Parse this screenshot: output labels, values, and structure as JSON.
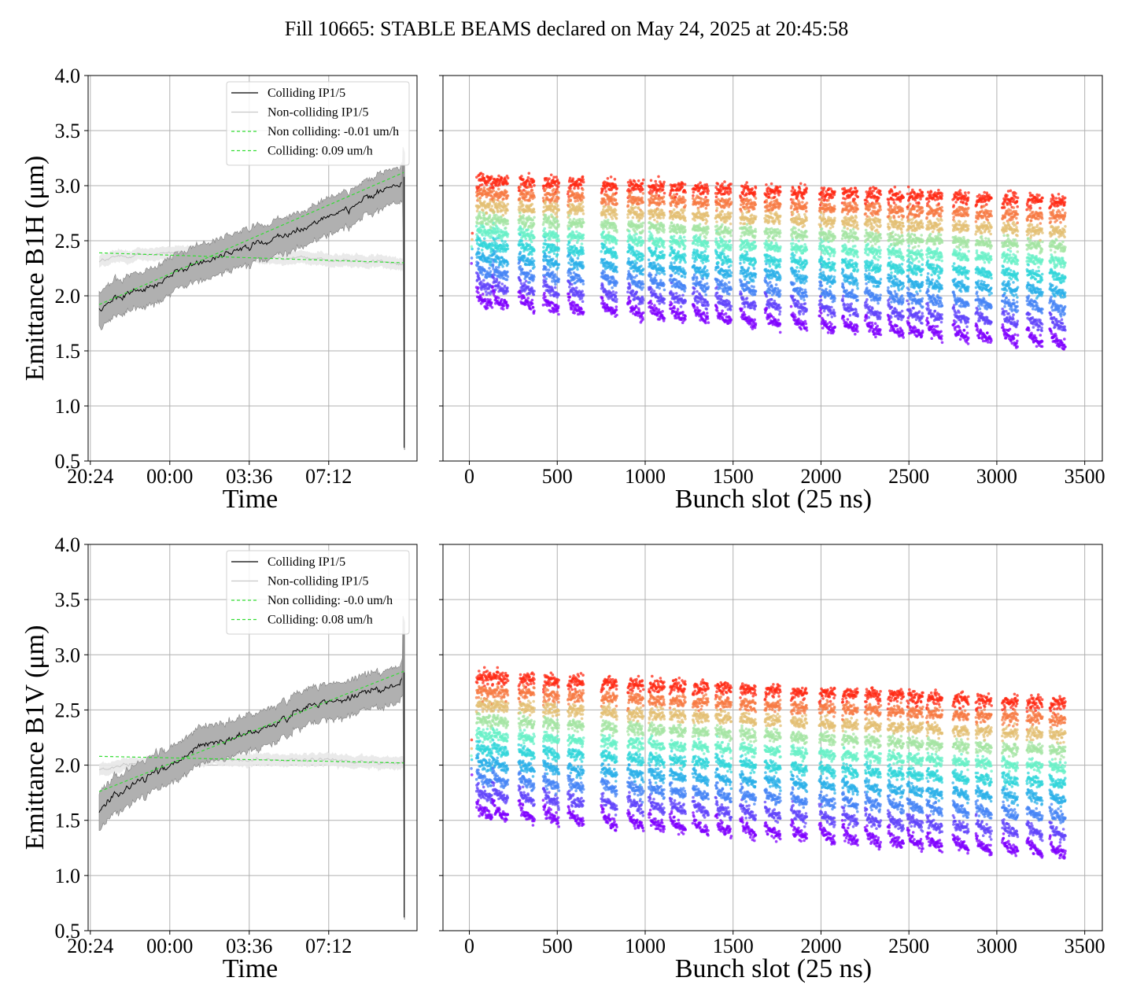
{
  "figure": {
    "title": "Fill 10665: STABLE BEAMS declared on May 24, 2025 at 20:45:58"
  },
  "chart_data": [
    {
      "type": "line",
      "panel": "top-left",
      "ylabel": "Emittance B1H (μm)",
      "xlabel": "Time",
      "x_unit": "hours since 20:24",
      "xlim_hours": [
        -0.1,
        14.8
      ],
      "x_ticks": [
        {
          "h": 0,
          "label": "20:24"
        },
        {
          "h": 3.6,
          "label": "00:00"
        },
        {
          "h": 7.2,
          "label": "03:36"
        },
        {
          "h": 10.8,
          "label": "07:12"
        }
      ],
      "ylim": [
        0.5,
        4.0
      ],
      "y_ticks": [
        "0.5",
        "1.0",
        "1.5",
        "2.0",
        "2.5",
        "3.0",
        "3.5",
        "4.0"
      ],
      "grid": true,
      "legend_position": "top-right",
      "legend": [
        "Colliding IP1/5",
        "Non-colliding IP1/5",
        "Non colliding: -0.01 um/h",
        "Colliding: 0.09 um/h"
      ],
      "series": [
        {
          "name": "Colliding IP1/5",
          "color": "#000000",
          "band_color": "#b0b0b0",
          "x": [
            0.4,
            1.0,
            2.0,
            3.0,
            4.0,
            5.0,
            6.0,
            7.0,
            8.0,
            9.0,
            10.0,
            11.0,
            12.0,
            13.0,
            13.5,
            14.0,
            14.2
          ],
          "y": [
            1.9,
            1.95,
            2.03,
            2.12,
            2.22,
            2.3,
            2.38,
            2.45,
            2.49,
            2.57,
            2.65,
            2.72,
            2.83,
            2.92,
            2.98,
            3.02,
            3.08
          ],
          "band_halfwidth": 0.15
        },
        {
          "name": "Non-colliding IP1/5",
          "color": "#c8c8c8",
          "band_color": "#e8e8e8",
          "x": [
            0.4,
            2.0,
            4.0,
            6.0,
            8.0,
            10.0,
            12.0,
            14.2
          ],
          "y": [
            2.32,
            2.37,
            2.39,
            2.38,
            2.35,
            2.33,
            2.31,
            2.3
          ],
          "band_halfwidth": 0.05
        },
        {
          "name": "Non colliding: -0.01 um/h",
          "style": "dashed",
          "color": "#33dd33",
          "x": [
            0.4,
            14.2
          ],
          "y": [
            2.39,
            2.3
          ]
        },
        {
          "name": "Colliding: 0.09 um/h",
          "style": "dashed",
          "color": "#33dd33",
          "x": [
            0.4,
            14.2
          ],
          "y": [
            1.92,
            3.12
          ]
        }
      ]
    },
    {
      "type": "scatter",
      "panel": "top-right",
      "xlabel": "Bunch slot (25 ns)",
      "xlim": [
        -150,
        3600
      ],
      "x_ticks": [
        "0",
        "500",
        "1000",
        "1500",
        "2000",
        "2500",
        "3000",
        "3500"
      ],
      "ylim": [
        0.5,
        4.0
      ],
      "grid": true,
      "colormap": "rainbow (time: violet = start, red = end)",
      "colormap_stops": [
        "#7f00ff",
        "#4a7bf7",
        "#1ccbe1",
        "#7efac0",
        "#f0b869",
        "#ff2a14"
      ],
      "trains_start": [
        40,
        130,
        280,
        420,
        560,
        750,
        900,
        1020,
        1140,
        1270,
        1400,
        1540,
        1680,
        1830,
        1990,
        2120,
        2250,
        2380,
        2490,
        2600,
        2750,
        2880,
        3030,
        3170,
        3300
      ],
      "train_length": 90,
      "bottom_envelope": {
        "x": [
          50,
          3420
        ],
        "y": [
          2.0,
          1.62
        ]
      },
      "top_envelope": {
        "x": [
          50,
          3420
        ],
        "y": [
          3.05,
          2.85
        ]
      }
    },
    {
      "type": "line",
      "panel": "bottom-left",
      "ylabel": "Emittance B1V (μm)",
      "xlabel": "Time",
      "x_unit": "hours since 20:24",
      "xlim_hours": [
        -0.1,
        14.8
      ],
      "x_ticks": [
        {
          "h": 0,
          "label": "20:24"
        },
        {
          "h": 3.6,
          "label": "00:00"
        },
        {
          "h": 7.2,
          "label": "03:36"
        },
        {
          "h": 10.8,
          "label": "07:12"
        }
      ],
      "ylim": [
        0.5,
        4.0
      ],
      "y_ticks": [
        "0.5",
        "1.0",
        "1.5",
        "2.0",
        "2.5",
        "3.0",
        "3.5",
        "4.0"
      ],
      "grid": true,
      "legend_position": "top-right",
      "legend": [
        "Colliding IP1/5",
        "Non-colliding IP1/5",
        "Non colliding: -0.0 um/h",
        "Colliding: 0.08 um/h"
      ],
      "series": [
        {
          "name": "Colliding IP1/5",
          "color": "#000000",
          "band_color": "#b0b0b0",
          "x": [
            0.4,
            1.0,
            2.0,
            3.0,
            4.0,
            5.0,
            6.0,
            7.0,
            8.0,
            9.0,
            10.0,
            11.0,
            12.0,
            13.0,
            13.5,
            14.0,
            14.2
          ],
          "y": [
            1.56,
            1.72,
            1.85,
            1.95,
            2.05,
            2.15,
            2.22,
            2.28,
            2.35,
            2.45,
            2.55,
            2.58,
            2.63,
            2.68,
            2.7,
            2.76,
            2.84
          ],
          "band_halfwidth": 0.15
        },
        {
          "name": "Non-colliding IP1/5",
          "color": "#c8c8c8",
          "band_color": "#e8e8e8",
          "x": [
            0.4,
            2.0,
            4.0,
            6.0,
            8.0,
            10.0,
            12.0,
            14.2
          ],
          "y": [
            1.95,
            2.02,
            2.06,
            2.06,
            2.05,
            2.04,
            2.03,
            2.02
          ],
          "band_halfwidth": 0.05
        },
        {
          "name": "Non colliding: -0.0 um/h",
          "style": "dashed",
          "color": "#33dd33",
          "x": [
            0.4,
            14.2
          ],
          "y": [
            2.08,
            2.02
          ]
        },
        {
          "name": "Colliding: 0.08 um/h",
          "style": "dashed",
          "color": "#33dd33",
          "x": [
            0.4,
            14.2
          ],
          "y": [
            1.76,
            2.85
          ]
        }
      ]
    },
    {
      "type": "scatter",
      "panel": "bottom-right",
      "xlabel": "Bunch slot (25 ns)",
      "xlim": [
        -150,
        3600
      ],
      "x_ticks": [
        "0",
        "500",
        "1000",
        "1500",
        "2000",
        "2500",
        "3000",
        "3500"
      ],
      "ylim": [
        0.5,
        4.0
      ],
      "grid": true,
      "colormap": "rainbow (time: violet = start, red = end)",
      "colormap_stops": [
        "#7f00ff",
        "#4a7bf7",
        "#1ccbe1",
        "#7efac0",
        "#f0b869",
        "#ff2a14"
      ],
      "trains_start": [
        40,
        130,
        280,
        420,
        560,
        750,
        900,
        1020,
        1140,
        1270,
        1400,
        1540,
        1680,
        1830,
        1990,
        2120,
        2250,
        2380,
        2490,
        2600,
        2750,
        2880,
        3030,
        3170,
        3300
      ],
      "train_length": 90,
      "bottom_envelope": {
        "x": [
          50,
          3420
        ],
        "y": [
          1.62,
          1.25
        ]
      },
      "top_envelope": {
        "x": [
          50,
          3420
        ],
        "y": [
          2.8,
          2.55
        ]
      }
    }
  ]
}
